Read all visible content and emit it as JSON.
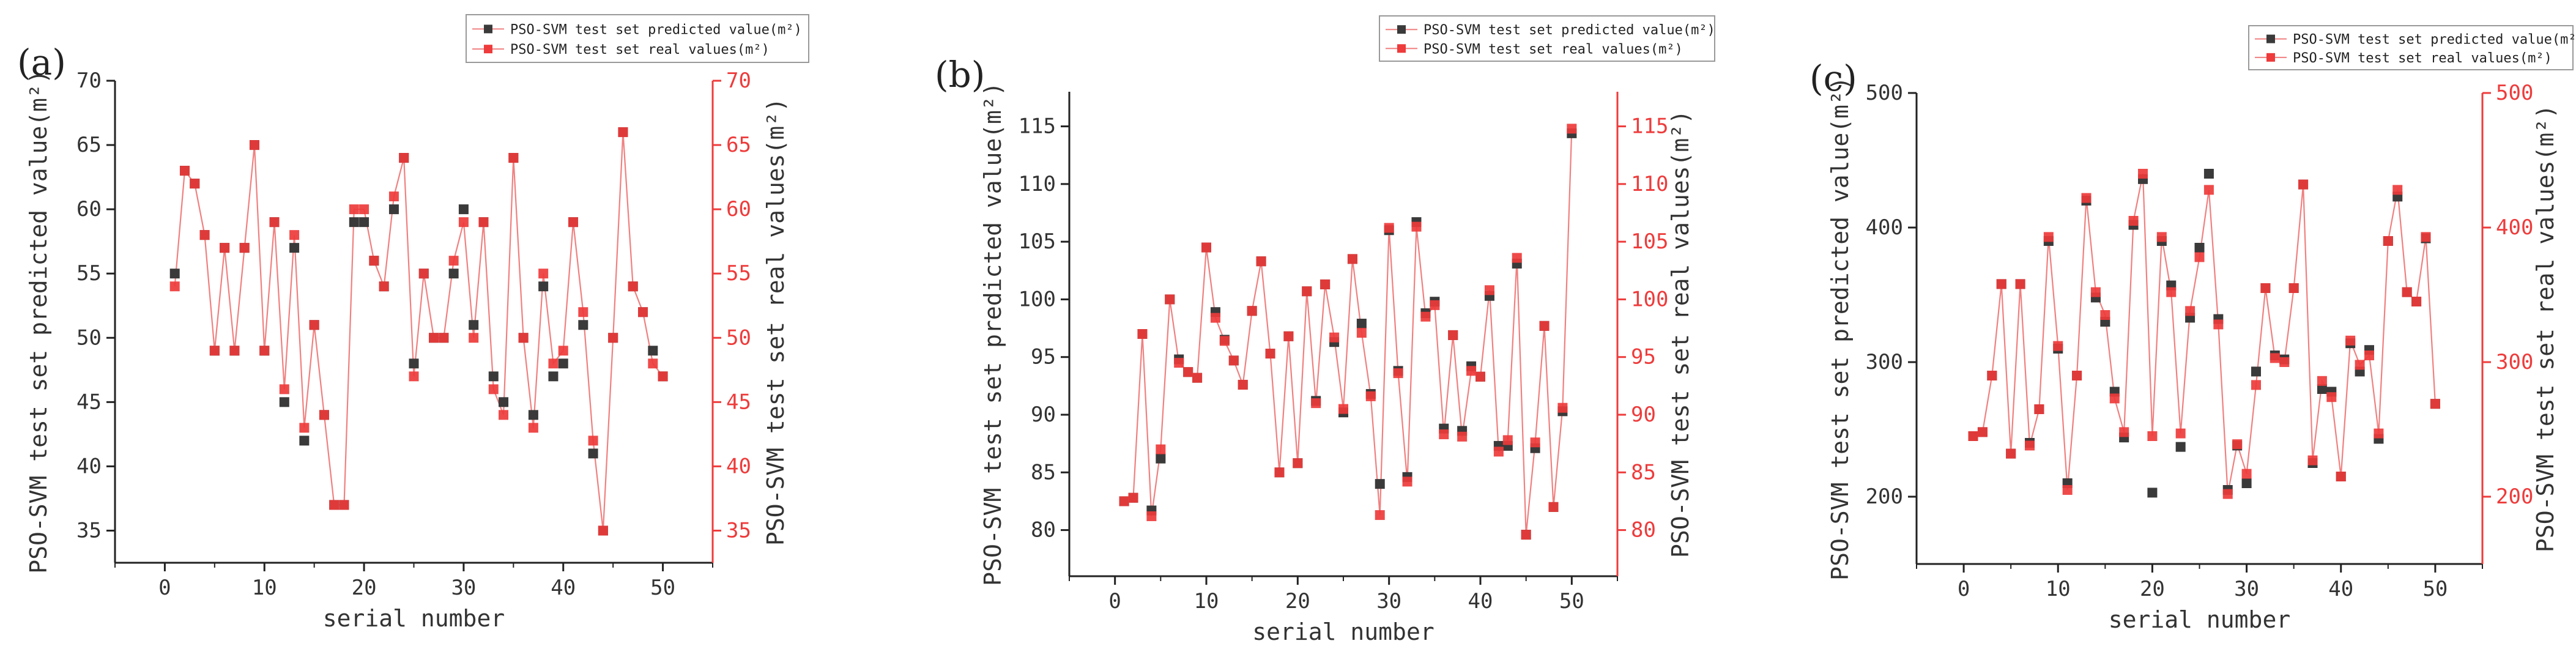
{
  "chart_data": [
    {
      "type": "line",
      "panel": "(a)",
      "xlabel": "serial number",
      "ylabel_left": "PSO-SVM test set predicted value(m²)",
      "ylabel_right": "PSO-SVM test set real values(m²)",
      "xlim": [
        -5,
        55
      ],
      "xticks": [
        0,
        10,
        20,
        30,
        40,
        50
      ],
      "ylim_left": [
        32.5,
        70
      ],
      "yticks_left": [
        35,
        40,
        45,
        50,
        55,
        60,
        65,
        70
      ],
      "ylim_right": [
        32.5,
        70
      ],
      "yticks_right": [
        35,
        40,
        45,
        50,
        55,
        60,
        65,
        70
      ],
      "legend": [
        "PSO-SVM test set predicted value(m²)",
        "PSO-SVM test set real values(m²)"
      ],
      "series": [
        {
          "name": "PSO-SVM test set predicted value(m²)",
          "color": "#3a3a3a",
          "values": [
            55,
            63,
            62,
            58,
            49,
            57,
            49,
            57,
            65,
            49,
            59,
            45,
            57,
            42,
            51,
            44,
            37,
            37,
            59,
            59,
            56,
            54,
            60,
            64,
            48,
            55,
            50,
            50,
            55,
            60,
            51,
            59,
            47,
            45,
            64,
            50,
            44,
            54,
            47,
            48,
            59,
            51,
            41,
            35,
            50,
            66,
            54,
            52,
            49,
            47
          ]
        },
        {
          "name": "PSO-SVM test set real values(m²)",
          "color": "#ee3b3b",
          "values": [
            54,
            63,
            62,
            58,
            49,
            57,
            49,
            57,
            65,
            49,
            59,
            46,
            58,
            43,
            51,
            44,
            37,
            37,
            60,
            60,
            56,
            54,
            61,
            64,
            47,
            55,
            50,
            50,
            56,
            59,
            50,
            59,
            46,
            44,
            64,
            50,
            43,
            55,
            48,
            49,
            59,
            52,
            42,
            35,
            50,
            66,
            54,
            52,
            48,
            47
          ]
        }
      ]
    },
    {
      "type": "line",
      "panel": "(b)",
      "xlabel": "serial number",
      "ylabel_left": "PSO-SVM test set predicted value(m²)",
      "ylabel_right": "PSO-SVM test set real values(m²)",
      "xlim": [
        -5,
        55
      ],
      "xticks": [
        0,
        10,
        20,
        30,
        40,
        50
      ],
      "ylim_left": [
        76,
        118
      ],
      "yticks_left": [
        80,
        85,
        90,
        95,
        100,
        105,
        110,
        115
      ],
      "ylim_right": [
        76,
        118
      ],
      "yticks_right": [
        80,
        85,
        90,
        95,
        100,
        105,
        110,
        115
      ],
      "legend": [
        "PSO-SVM test set predicted value(m²)",
        "PSO-SVM test set real values(m²)"
      ],
      "series": [
        {
          "name": "PSO-SVM test set predicted value(m²)",
          "color": "#3a3a3a",
          "values": [
            82.5,
            82.8,
            97,
            81.7,
            86.2,
            100,
            94.8,
            93.7,
            93.2,
            104.5,
            98.9,
            96.5,
            94.7,
            92.6,
            99,
            103.3,
            95.3,
            85,
            96.8,
            85.8,
            100.7,
            91.2,
            101.3,
            96.3,
            90.2,
            103.5,
            97.9,
            91.8,
            84,
            106,
            93.8,
            84.6,
            106.7,
            98.8,
            99.8,
            88.8,
            96.9,
            88.6,
            94.2,
            93.3,
            100.3,
            87.3,
            87.3,
            103.1,
            79.6,
            87.1,
            97.7,
            82,
            90.3,
            114.4
          ]
        },
        {
          "name": "PSO-SVM test set real values(m²)",
          "color": "#ee3b3b",
          "values": [
            82.5,
            82.8,
            97,
            81.2,
            87,
            100,
            94.5,
            93.7,
            93.2,
            104.5,
            98.4,
            96.4,
            94.7,
            92.6,
            99,
            103.3,
            95.3,
            85,
            96.8,
            85.8,
            100.7,
            91,
            101.3,
            96.7,
            90.5,
            103.5,
            97.1,
            91.6,
            81.3,
            106.2,
            93.6,
            84.2,
            106.3,
            98.5,
            99.5,
            88.3,
            96.9,
            88.1,
            93.8,
            93.3,
            100.8,
            86.8,
            87.8,
            103.6,
            79.6,
            87.6,
            97.7,
            82,
            90.6,
            114.8
          ]
        }
      ]
    },
    {
      "type": "line",
      "panel": "(c)",
      "xlabel": "serial number",
      "ylabel_left": "PSO-SVM test set predicted value(m²)",
      "ylabel_right": "PSO-SVM test set real values(m²)",
      "xlim": [
        -5,
        55
      ],
      "xticks": [
        0,
        10,
        20,
        30,
        40,
        50
      ],
      "ylim_left": [
        150,
        500
      ],
      "yticks_left": [
        200,
        300,
        400,
        500
      ],
      "ylim_right": [
        150,
        500
      ],
      "yticks_right": [
        200,
        300,
        400,
        500
      ],
      "legend": [
        "PSO-SVM test set predicted value(m²)",
        "PSO-SVM test set real values(m²)"
      ],
      "series": [
        {
          "name": "PSO-SVM test set predicted value(m²)",
          "color": "#3a3a3a",
          "values": [
            245,
            248,
            290,
            358,
            232,
            358,
            240,
            265,
            390,
            310,
            210,
            290,
            420,
            348,
            330,
            278,
            244,
            402,
            436,
            203,
            390,
            357,
            237,
            333,
            385,
            440,
            332,
            205,
            238,
            210,
            293,
            355,
            305,
            302,
            355,
            432,
            225,
            280,
            278,
            215,
            314,
            293,
            309,
            243,
            390,
            423,
            352,
            345,
            392,
            269
          ]
        },
        {
          "name": "PSO-SVM test set real values(m²)",
          "color": "#ee3b3b",
          "values": [
            245,
            248,
            290,
            358,
            232,
            358,
            238,
            265,
            393,
            312,
            205,
            290,
            422,
            352,
            335,
            273,
            248,
            405,
            440,
            245,
            393,
            352,
            247,
            338,
            378,
            428,
            328,
            202,
            239,
            217,
            283,
            355,
            303,
            300,
            355,
            432,
            227,
            286,
            274,
            215,
            316,
            298,
            305,
            247,
            390,
            428,
            352,
            345,
            393,
            269
          ]
        }
      ]
    }
  ]
}
